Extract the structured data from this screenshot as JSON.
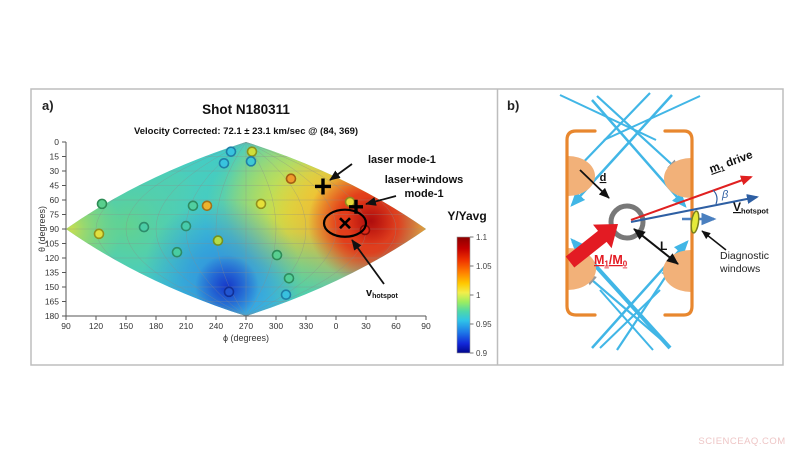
{
  "watermark": "SCIENCEAQ.COM",
  "colors": {
    "hohlraum_orange": "#e8872e",
    "window_tan": "#f2b179",
    "beam_blue": "#41b6e6",
    "drive_red": "#e02020",
    "hotspot_blue": "#2e5fa3",
    "steel_blue": "#4a7fbf",
    "diag_window_yellow": "#e6ea3a",
    "colorbar_max_red": "#8c0000",
    "colorbar_min_blue": "#00068c"
  },
  "panel_a": {
    "label": "a)",
    "title": "Shot N180311",
    "subtitle": "Velocity Corrected: 72.1 ± 23.1 km/sec @ (84, 369)",
    "xlabel": "ϕ (degrees)",
    "ylabel": "θ (degrees)",
    "colorbar_title": "Y/Yavg",
    "ann_laser_mode1": "laser mode-1",
    "ann_laser_windows_1": "laser+windows",
    "ann_laser_windows_2": "mode-1",
    "ann_v": "v",
    "ann_v_sub": "hotspot"
  },
  "panel_b": {
    "label": "b)",
    "d": "d",
    "L": "L",
    "beta": "β",
    "m1": "m",
    "m1_sub": "1",
    "m1_rest": " drive",
    "V": "V",
    "V_sub": "hotspot",
    "mass": "M",
    "mass_sub1": "1",
    "mass_mid": "/M",
    "mass_sub2": "0",
    "diag1": "Diagnostic",
    "diag2": "windows"
  },
  "chart_data": {
    "type": "heatmap",
    "projection": "angular sky-map (sinusoidal-style lens), scatter overlay",
    "title": "Shot N180311",
    "subtitle": "Velocity Corrected: 72.1 ± 23.1 km/sec @ (84, 369)",
    "xlabel": "ϕ (degrees)",
    "ylabel": "θ (degrees)",
    "x_ticks": [
      90,
      120,
      150,
      180,
      210,
      240,
      270,
      300,
      330,
      0,
      30,
      60,
      90
    ],
    "y_ticks": [
      0,
      15,
      30,
      45,
      60,
      75,
      90,
      105,
      120,
      135,
      150,
      165,
      180
    ],
    "grid": true,
    "colorbar": {
      "label": "Y/Yavg",
      "min": 0.9,
      "max": 1.1,
      "ticks": [
        1.1,
        1.05,
        1,
        0.95,
        0.9
      ]
    },
    "hotspot_peak": {
      "phi": 9,
      "theta": 84,
      "value_approx": 1.1
    },
    "cold_region": {
      "phi": 240,
      "theta": 125,
      "value_approx": 0.93
    },
    "markers": {
      "laser_mode1_plus": {
        "phi": 347,
        "theta": 46
      },
      "laser_windows_plus": {
        "phi": 20,
        "theta": 67
      },
      "hotspot_x": {
        "phi": 9,
        "theta": 84
      },
      "hotspot_ellipse": {
        "phi": 9,
        "theta": 84,
        "r_phi": 21,
        "r_theta": 14
      }
    },
    "points": [
      {
        "phi": 255,
        "theta": 10,
        "fill": "#38c3de",
        "stroke": "#1f7fa6"
      },
      {
        "phi": 276,
        "theta": 10,
        "fill": "#cfdf3a",
        "stroke": "#8a941c"
      },
      {
        "phi": 248,
        "theta": 22,
        "fill": "#38c3de",
        "stroke": "#1f7fa6"
      },
      {
        "phi": 275,
        "theta": 20,
        "fill": "#3ec9d4",
        "stroke": "#1f7fa6"
      },
      {
        "phi": 315,
        "theta": 38,
        "fill": "#f09a2c",
        "stroke": "#a35f12"
      },
      {
        "phi": 126,
        "theta": 64,
        "fill": "#59cf8d",
        "stroke": "#2d8c55"
      },
      {
        "phi": 217,
        "theta": 66,
        "fill": "#50cfa0",
        "stroke": "#2d8c62"
      },
      {
        "phi": 231,
        "theta": 66,
        "fill": "#ecb32e",
        "stroke": "#a0721a"
      },
      {
        "phi": 285,
        "theta": 64,
        "fill": "#e5e039",
        "stroke": "#92901c"
      },
      {
        "phi": 14,
        "theta": 62,
        "fill": "#e5d839",
        "stroke": "#92881c"
      },
      {
        "phi": 123,
        "theta": 95,
        "fill": "#e0e040",
        "stroke": "#92921c"
      },
      {
        "phi": 168,
        "theta": 88,
        "fill": "#4bcda6",
        "stroke": "#2d8c6b"
      },
      {
        "phi": 210,
        "theta": 87,
        "fill": "#46cbac",
        "stroke": "#2d8c6e"
      },
      {
        "phi": 242,
        "theta": 102,
        "fill": "#b4dc48",
        "stroke": "#74921e"
      },
      {
        "phi": 29,
        "theta": 91,
        "fill": "#dd2817",
        "stroke": "#7d0c06"
      },
      {
        "phi": 201,
        "theta": 114,
        "fill": "#48cda2",
        "stroke": "#2d8c66"
      },
      {
        "phi": 301,
        "theta": 117,
        "fill": "#58cf90",
        "stroke": "#2d8c58"
      },
      {
        "phi": 313,
        "theta": 141,
        "fill": "#52cf98",
        "stroke": "#2d8c5e"
      },
      {
        "phi": 253,
        "theta": 155,
        "fill": "#2256d2",
        "stroke": "#112f96"
      },
      {
        "phi": 310,
        "theta": 158,
        "fill": "#38c0de",
        "stroke": "#1f7fa6"
      }
    ]
  }
}
